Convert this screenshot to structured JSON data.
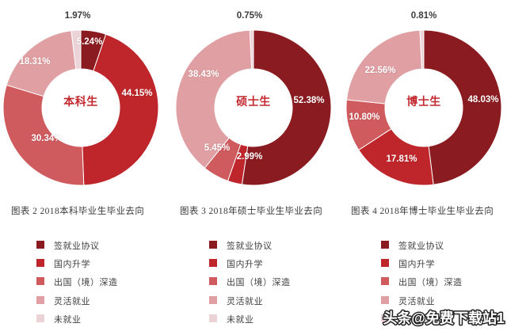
{
  "page": {
    "background_color": "#ffffff"
  },
  "chart_data": [
    {
      "type": "pie",
      "donut": true,
      "title": "图表 2  2018本科毕业生毕业去向",
      "center_label": "本科生",
      "categories": [
        "签就业协议",
        "国内升学",
        "出国（境）深造",
        "灵活就业",
        "未就业"
      ],
      "values": [
        5.24,
        44.15,
        30.34,
        18.31,
        1.97
      ],
      "unit": "%",
      "start_angle_deg": 0,
      "direction": "clockwise",
      "legend_position": "bottom"
    },
    {
      "type": "pie",
      "donut": true,
      "title": "图表 3  2018年硕士毕业生毕业去向",
      "center_label": "硕士生",
      "categories": [
        "签就业协议",
        "国内升学",
        "出国（境）深造",
        "灵活就业",
        "未就业"
      ],
      "values": [
        52.38,
        2.99,
        5.45,
        38.43,
        0.75
      ],
      "unit": "%",
      "start_angle_deg": 0,
      "direction": "clockwise",
      "legend_position": "bottom"
    },
    {
      "type": "pie",
      "donut": true,
      "title": "图表 4  2018年博士毕业生毕业去向",
      "center_label": "博士生",
      "categories": [
        "签就业协议",
        "国内升学",
        "出国（境）深造",
        "灵活就业",
        "未就业"
      ],
      "values": [
        48.03,
        17.81,
        10.8,
        22.56,
        0.81
      ],
      "unit": "%",
      "start_angle_deg": 0,
      "direction": "clockwise",
      "legend_position": "bottom"
    }
  ],
  "colors": {
    "slice_colors": [
      "#8a1c21",
      "#bf262b",
      "#cf5b5f",
      "#df9fa3",
      "#ebd3d7"
    ],
    "inside_label_color": "#ffffff",
    "outside_label_color": "#3c3c3c",
    "center_label_color": "#c2282d",
    "caption_color": "#3b3b3b",
    "legend_text_color": "#414141"
  },
  "watermark": {
    "text": "头条@免费下载站1",
    "fill_color": "#ffffff",
    "outline_color": "#222222"
  }
}
